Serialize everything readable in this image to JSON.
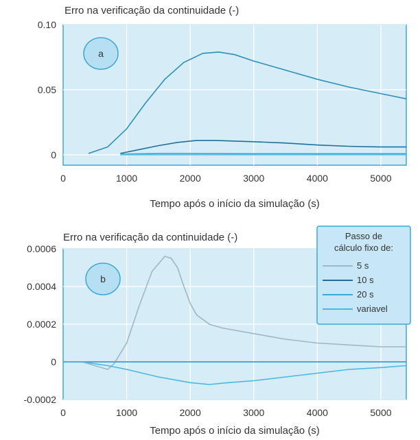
{
  "chart_data": [
    {
      "panel": "a",
      "type": "line",
      "title": "Erro na verificação da continuidade (-)",
      "xlabel": "Tempo após o início da simulação (s)",
      "ylabel": "",
      "xlim": [
        0,
        5400
      ],
      "ylim": [
        -0.008,
        0.1
      ],
      "x_ticks": [
        "0",
        "1000",
        "2000",
        "3000",
        "4000",
        "5000"
      ],
      "y_ticks": [
        "0",
        "0.05",
        "0.10"
      ],
      "x_tick_values": [
        0,
        1000,
        2000,
        3000,
        4000,
        5000
      ],
      "y_tick_values": [
        0,
        0.05,
        0.1
      ],
      "background": "#d6ecf6",
      "grid": true,
      "series": [
        {
          "color": "#2e8fb8",
          "x": [
            400,
            700,
            1000,
            1300,
            1600,
            1900,
            2200,
            2450,
            2700,
            3000,
            3500,
            4000,
            4500,
            5000,
            5400
          ],
          "y": [
            0.001,
            0.006,
            0.02,
            0.04,
            0.058,
            0.071,
            0.078,
            0.079,
            0.077,
            0.072,
            0.065,
            0.058,
            0.052,
            0.047,
            0.043
          ]
        },
        {
          "color": "#1d6f9c",
          "x": [
            900,
            1200,
            1500,
            1800,
            2100,
            2400,
            3000,
            3500,
            4000,
            4500,
            5000,
            5400
          ],
          "y": [
            0.001,
            0.004,
            0.007,
            0.0095,
            0.011,
            0.011,
            0.01,
            0.009,
            0.0075,
            0.0065,
            0.006,
            0.006
          ]
        },
        {
          "color": "#3ba7d4",
          "x": [
            900,
            1500,
            2000,
            3000,
            4000,
            5000,
            5400
          ],
          "y": [
            0.0005,
            0.001,
            0.001,
            0.0008,
            0.0008,
            0.0008,
            0.0008
          ]
        },
        {
          "color": "#5ec2e6",
          "x": [
            900,
            2000,
            3000,
            4000,
            5000,
            5400
          ],
          "y": [
            0,
            0,
            0,
            0,
            0,
            0
          ]
        }
      ]
    },
    {
      "panel": "b",
      "type": "line",
      "title": "Erro na verificação da continuidade  (-)",
      "xlabel": "Tempo após o início da simulação (s)",
      "ylabel": "",
      "xlim": [
        0,
        5400
      ],
      "ylim": [
        -0.0002,
        0.0006
      ],
      "x_ticks": [
        "0",
        "1000",
        "2000",
        "3000",
        "4000",
        "5000"
      ],
      "y_ticks": [
        "-0.0002",
        "0",
        "0.0002",
        "0.0004",
        "0.0006"
      ],
      "x_tick_values": [
        0,
        1000,
        2000,
        3000,
        4000,
        5000
      ],
      "y_tick_values": [
        -0.0002,
        0,
        0.0002,
        0.0004,
        0.0006
      ],
      "background": "#d6ecf6",
      "grid": true,
      "legend": {
        "title": "Passo de cálculo fixo de:",
        "placement": "top-right",
        "entries": [
          "5 s",
          "10 s",
          "20 s",
          "variavel"
        ]
      },
      "series": [
        {
          "name": "5 s",
          "color": "#9fb7c4",
          "x": [
            0,
            300,
            500,
            700,
            800,
            1000,
            1200,
            1400,
            1600,
            1700,
            1800,
            1900,
            2000,
            2100,
            2300,
            2500,
            3000,
            3500,
            4000,
            4500,
            5000,
            5400
          ],
          "y": [
            0,
            0,
            -2e-05,
            -4e-05,
            -1e-05,
            0.0001,
            0.0003,
            0.00048,
            0.00056,
            0.00055,
            0.0005,
            0.0004,
            0.00031,
            0.00025,
            0.0002,
            0.00018,
            0.00015,
            0.00012,
            0.0001,
            9e-05,
            8e-05,
            8e-05
          ]
        },
        {
          "name": "10 s",
          "color": "#1d6f9c",
          "x": [
            0,
            5400
          ],
          "y": [
            0,
            0
          ]
        },
        {
          "name": "20 s",
          "color": "#3ba7d4",
          "x": [
            0,
            5400
          ],
          "y": [
            0,
            0
          ]
        },
        {
          "name": "variavel",
          "color": "#4ab6e2",
          "x": [
            0,
            300,
            700,
            1000,
            1500,
            2000,
            2300,
            2600,
            3000,
            3500,
            4000,
            4500,
            5000,
            5400
          ],
          "y": [
            0,
            0,
            -2e-05,
            -4e-05,
            -8e-05,
            -0.00011,
            -0.00012,
            -0.00011,
            -0.0001,
            -8e-05,
            -6e-05,
            -4e-05,
            -3e-05,
            -2e-05
          ]
        }
      ]
    }
  ],
  "badges": {
    "a": "a",
    "b": "b"
  },
  "colors": {
    "plot_bg": "#d6ecf6",
    "grid": "#ffffff",
    "axis": "#3ba7d4",
    "badge_fill": "#b7dff3",
    "badge_stroke": "#3ba7d4"
  }
}
